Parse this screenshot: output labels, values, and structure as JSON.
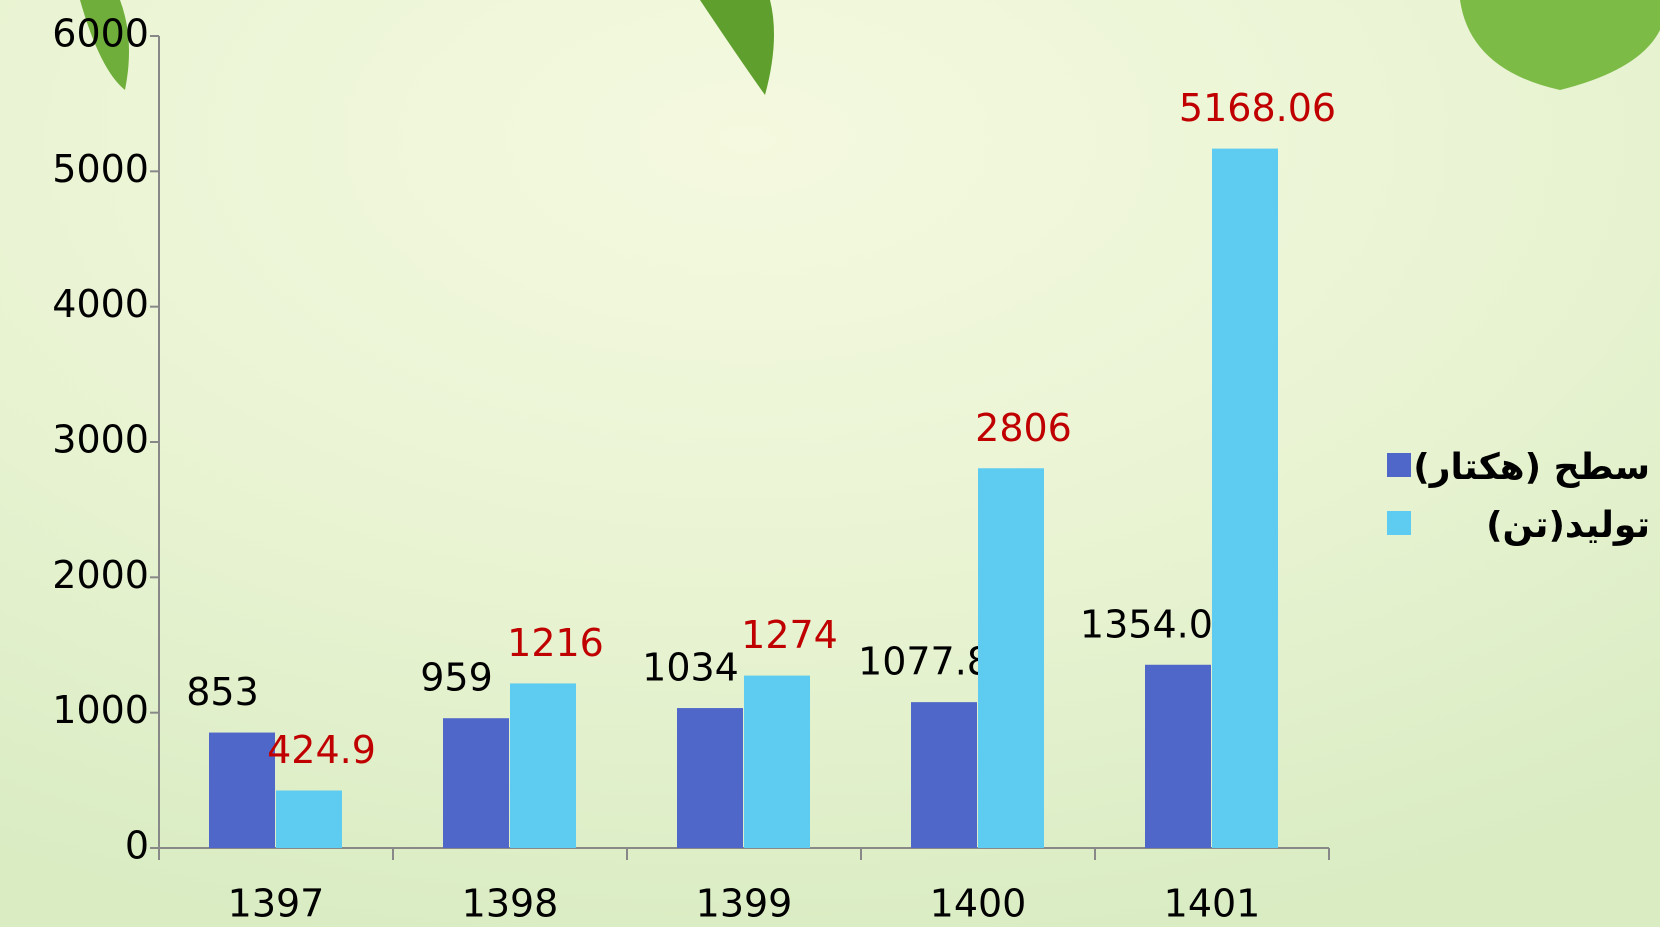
{
  "chart_data": {
    "type": "bar",
    "categories": [
      "1397",
      "1398",
      "1399",
      "1400",
      "1401"
    ],
    "series": [
      {
        "name": "سطح (هکتار)",
        "color": "#4f67c8",
        "label_color": "#000000",
        "values": [
          853,
          959,
          1034,
          1077.8,
          1354.02
        ]
      },
      {
        "name": "تولید(تن)",
        "color": "#5ecbf0",
        "label_color": "#c00000",
        "values": [
          424.9,
          1216,
          1274,
          2806,
          5168.06
        ]
      }
    ],
    "ylim": [
      0,
      6000
    ],
    "yticks": [
      0,
      1000,
      2000,
      3000,
      4000,
      5000,
      6000
    ],
    "grid": false,
    "legend": "right"
  }
}
